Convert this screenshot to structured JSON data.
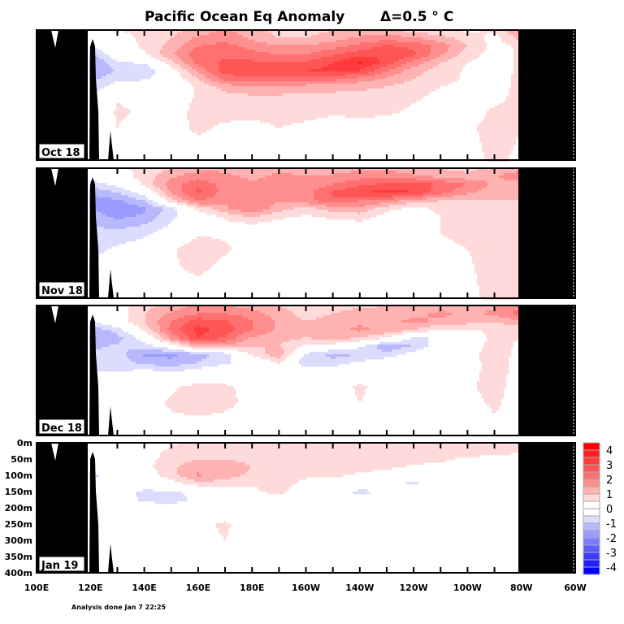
{
  "chart_data": {
    "type": "heatmap",
    "title": "Pacific Ocean Eq Anomaly",
    "contour_interval": "Δ=0.5 ° C",
    "footer": "Analysis done Jan 7 22:25",
    "x_tick_labels": [
      "100E",
      "120E",
      "140E",
      "160E",
      "180E",
      "160W",
      "140W",
      "120W",
      "100W",
      "80W",
      "60W"
    ],
    "y_tick_labels": [
      "0m",
      "50m",
      "100m",
      "150m",
      "200m",
      "250m",
      "300m",
      "350m",
      "400m"
    ],
    "xlim_deg_east": [
      100,
      300
    ],
    "ylim_depth_m": [
      0,
      400
    ],
    "land_color": "#000000",
    "colorbar": {
      "labels": [
        "4",
        "3",
        "2",
        "1",
        "0",
        "-1",
        "-2",
        "-3",
        "-4"
      ],
      "colors": [
        "#ff0000",
        "#ff2020",
        "#ff3c3c",
        "#ff5555",
        "#ff7070",
        "#ff8e8e",
        "#ffb2b2",
        "#ffdada",
        "#ffffff",
        "#ffffff",
        "#dcdcff",
        "#b8b8ff",
        "#9a9aff",
        "#7c7cff",
        "#5c5cff",
        "#3c3cff",
        "#2020ff",
        "#0000ff"
      ]
    },
    "grid_lon_deg_east": [
      120,
      130,
      140,
      150,
      160,
      170,
      180,
      190,
      200,
      210,
      220,
      230,
      240,
      250,
      260,
      270,
      280
    ],
    "grid_depth_m": [
      0,
      25,
      50,
      75,
      100,
      125,
      150,
      175,
      200,
      250,
      300,
      400
    ],
    "panels": [
      {
        "label": "Oct 18",
        "values": [
          [
            0,
            0.5,
            0.6,
            0.8,
            1.2,
            1.6,
            1.2,
            0.8,
            0.8,
            1.0,
            1.2,
            1.0,
            0.8,
            0.6,
            0.4,
            0.6,
            1.6
          ],
          [
            0,
            0.3,
            0.6,
            1.0,
            1.6,
            1.8,
            1.4,
            1.0,
            1.0,
            1.3,
            1.6,
            1.8,
            1.6,
            1.2,
            0.8,
            0.3,
            1.2
          ],
          [
            -0.5,
            0.2,
            0.6,
            1.2,
            2.0,
            2.2,
            1.8,
            1.6,
            1.6,
            1.8,
            2.2,
            2.6,
            2.4,
            1.8,
            1.0,
            0.3,
            0.6
          ],
          [
            -1.2,
            0,
            0.4,
            1.4,
            2.4,
            2.4,
            2.2,
            2.0,
            2.0,
            2.4,
            2.8,
            3.0,
            2.6,
            1.6,
            0.7,
            0.3,
            0.6
          ],
          [
            -1.6,
            -0.6,
            -0.4,
            0.8,
            2.2,
            2.6,
            2.6,
            2.6,
            2.6,
            3.0,
            3.6,
            2.8,
            1.8,
            1.0,
            0.5,
            0.3,
            0.6
          ],
          [
            -1.6,
            -0.9,
            -1.0,
            0.2,
            1.6,
            2.8,
            2.8,
            2.8,
            3.0,
            3.2,
            3.0,
            2.0,
            1.2,
            0.8,
            0.4,
            0.2,
            0.6
          ],
          [
            -1.2,
            -0.6,
            -0.6,
            0,
            1.0,
            2.2,
            2.4,
            2.4,
            2.4,
            2.2,
            1.8,
            1.4,
            1.0,
            0.7,
            0.4,
            0.2,
            0.7
          ],
          [
            -0.8,
            -0.2,
            0.1,
            -0.2,
            0.6,
            1.2,
            1.4,
            1.3,
            1.2,
            1.2,
            1.1,
            1.0,
            0.7,
            0.5,
            0.3,
            0.2,
            0.7
          ],
          [
            -0.6,
            0.4,
            0.3,
            0,
            0.6,
            0.9,
            1.0,
            1.0,
            0.9,
            0.9,
            0.9,
            0.8,
            0.6,
            0.4,
            0.2,
            0.3,
            0.7
          ],
          [
            -0.3,
            0.6,
            0.4,
            0.2,
            0.7,
            0.7,
            0.7,
            0.8,
            0.8,
            0.6,
            0.7,
            0.6,
            0.4,
            0.3,
            0.2,
            0.6,
            0.6
          ],
          [
            0,
            0.5,
            0.2,
            0.3,
            0.6,
            0.4,
            0.3,
            0.5,
            0.3,
            0.2,
            0.2,
            0.2,
            0.2,
            0.2,
            0.4,
            0.7,
            0.5
          ],
          [
            0,
            0.3,
            0,
            0.2,
            0.2,
            0.2,
            0.1,
            0.1,
            0.1,
            0.1,
            0.1,
            0.1,
            0.1,
            0.1,
            0.3,
            0.6,
            0.4
          ]
        ]
      },
      {
        "label": "Nov 18",
        "values": [
          [
            0,
            0.4,
            0.6,
            1.0,
            1.3,
            1.4,
            1.2,
            1.4,
            1.3,
            1.2,
            1.4,
            1.4,
            1.2,
            1.0,
            0.8,
            1.2,
            1.2
          ],
          [
            -0.3,
            0.2,
            0.7,
            1.4,
            1.8,
            1.6,
            1.4,
            1.6,
            1.5,
            1.6,
            1.8,
            1.8,
            1.6,
            1.4,
            1.2,
            1.4,
            2.0
          ],
          [
            -0.8,
            -0.3,
            0.6,
            1.8,
            2.4,
            1.8,
            1.6,
            1.6,
            1.6,
            2.0,
            2.4,
            2.6,
            2.8,
            2.4,
            2.0,
            1.4,
            1.2
          ],
          [
            -1.4,
            -1.0,
            -0.2,
            1.6,
            2.6,
            1.8,
            1.6,
            1.5,
            1.8,
            2.6,
            3.0,
            3.2,
            3.0,
            2.2,
            1.6,
            1.2,
            1.0
          ],
          [
            -1.8,
            -1.6,
            -1.0,
            0.8,
            2.0,
            1.6,
            1.6,
            1.6,
            1.8,
            2.4,
            2.0,
            1.8,
            1.2,
            1.0,
            1.0,
            1.0,
            1.0
          ],
          [
            -1.4,
            -2.0,
            -1.6,
            -0.8,
            0.6,
            1.4,
            2.0,
            1.2,
            0.8,
            1.2,
            1.4,
            0.6,
            0.3,
            0.6,
            0.8,
            1.0,
            0.8
          ],
          [
            -1.2,
            -1.6,
            -1.4,
            -0.6,
            0,
            0.6,
            1.0,
            0.6,
            0.4,
            0.6,
            0.7,
            0.3,
            0.2,
            0.5,
            0.7,
            1.0,
            0.8
          ],
          [
            -1.0,
            -1.2,
            -1.0,
            -0.4,
            0.2,
            0.3,
            0.4,
            0.2,
            0.1,
            0.2,
            0.3,
            0.2,
            0.2,
            0.5,
            0.6,
            0.9,
            0.7
          ],
          [
            -0.8,
            -0.8,
            -0.6,
            -0.2,
            0.4,
            0.4,
            0.2,
            0.1,
            0,
            0.2,
            0.2,
            0.2,
            0.3,
            0.5,
            0.6,
            0.9,
            0.7
          ],
          [
            -0.7,
            -0.4,
            -0.2,
            0.4,
            0.9,
            0.6,
            0.2,
            0,
            0.1,
            0.4,
            0.4,
            0.3,
            0.3,
            0.4,
            0.5,
            0.8,
            0.7
          ],
          [
            -0.6,
            0.2,
            0,
            0.4,
            0.7,
            0.3,
            0.1,
            0,
            0,
            0.2,
            0.2,
            0.2,
            0.2,
            0.3,
            0.4,
            0.8,
            0.6
          ],
          [
            -0.2,
            0.3,
            0,
            0.1,
            0.1,
            0,
            0,
            0,
            0,
            0,
            0,
            0,
            0,
            0.1,
            0.3,
            0.7,
            0.5
          ]
        ]
      },
      {
        "label": "Dec 18",
        "values": [
          [
            0.2,
            0.3,
            0.8,
            1.2,
            1.6,
            1.6,
            1.2,
            1.0,
            0.8,
            0.8,
            0.9,
            1.0,
            1.2,
            1.3,
            1.2,
            1.4,
            2.0
          ],
          [
            0,
            0.2,
            1.0,
            1.6,
            2.0,
            2.0,
            1.8,
            1.2,
            0.8,
            1.0,
            1.2,
            1.2,
            1.4,
            1.6,
            1.4,
            1.6,
            2.2
          ],
          [
            -0.6,
            0.2,
            1.0,
            2.0,
            2.8,
            2.6,
            2.0,
            1.4,
            1.0,
            1.2,
            1.4,
            1.4,
            1.6,
            1.4,
            1.2,
            1.0,
            1.4
          ],
          [
            -1.4,
            -0.8,
            0.6,
            2.2,
            3.2,
            2.8,
            2.0,
            1.4,
            1.2,
            1.4,
            1.6,
            1.4,
            1.0,
            0.4,
            0.4,
            0.6,
            0.6
          ],
          [
            -1.6,
            -1.2,
            -0.2,
            1.6,
            3.0,
            2.4,
            1.4,
            1.2,
            1.0,
            1.2,
            1.0,
            0.4,
            -0.6,
            -0.4,
            0.2,
            0.6,
            0.5
          ],
          [
            -1.2,
            -0.9,
            -0.8,
            0,
            1.4,
            1.4,
            1.0,
            1.0,
            0.4,
            0.2,
            -0.4,
            -1.4,
            -1.0,
            0,
            0.2,
            0.7,
            0.4
          ],
          [
            -0.8,
            -0.8,
            -1.6,
            -1.6,
            -1.2,
            -0.8,
            0.6,
            1.4,
            -0.6,
            -1.2,
            -1.0,
            -0.8,
            -0.2,
            0.2,
            0.3,
            0.8,
            0.3
          ],
          [
            -0.6,
            -0.6,
            -1.2,
            -1.4,
            -1.0,
            -0.6,
            -0.2,
            0.6,
            -1.0,
            -0.8,
            -0.4,
            -0.1,
            0,
            0.1,
            0.3,
            0.7,
            0.3
          ],
          [
            -0.5,
            -0.6,
            -0.4,
            -0.6,
            -0.3,
            -0.1,
            0,
            0,
            -0.2,
            -0.1,
            0,
            0,
            0,
            0.1,
            0.3,
            0.7,
            0.3
          ],
          [
            -0.4,
            0.2,
            0,
            0.4,
            0.7,
            0.6,
            0.3,
            0,
            0,
            0.2,
            0.6,
            0.2,
            0,
            0.1,
            0.4,
            0.7,
            0.2
          ],
          [
            0,
            0.4,
            0.2,
            0.6,
            0.7,
            0.6,
            0.4,
            0.1,
            0,
            0.2,
            0.5,
            0.2,
            0.3,
            0.1,
            0.3,
            0.6,
            0.2
          ],
          [
            0,
            0.1,
            0,
            0.2,
            0.2,
            0.2,
            0.1,
            0,
            0,
            0,
            0,
            0,
            0,
            0,
            0,
            0.3,
            0.1
          ]
        ]
      },
      {
        "label": "Jan 19",
        "values": [
          [
            0,
            0.1,
            0.2,
            0.4,
            0.7,
            0.8,
            0.8,
            0.7,
            0.6,
            0.5,
            0.7,
            0.8,
            0.8,
            0.8,
            0.8,
            0.8,
            0.7
          ],
          [
            0,
            0.1,
            0.3,
            0.6,
            0.8,
            0.9,
            0.8,
            0.7,
            0.7,
            0.6,
            0.7,
            0.8,
            0.8,
            0.8,
            0.8,
            0.7,
            0.6
          ],
          [
            0,
            0.1,
            0.3,
            0.7,
            1.0,
            1.0,
            0.9,
            0.8,
            0.8,
            0.8,
            0.8,
            0.8,
            0.7,
            0.6,
            0.4,
            0.3,
            0.2
          ],
          [
            -0.3,
            0,
            0.3,
            0.9,
            1.3,
            1.2,
            1.0,
            0.8,
            0.8,
            0.8,
            0.7,
            0.6,
            0.4,
            0.3,
            0.2,
            0.1,
            0
          ],
          [
            -0.6,
            -0.3,
            0.1,
            0.8,
            1.6,
            1.2,
            0.9,
            0.7,
            0.6,
            0.6,
            0.4,
            0.2,
            0,
            -0.3,
            0,
            0,
            0
          ],
          [
            -0.4,
            -0.2,
            0,
            0.2,
            0.8,
            0.8,
            0.6,
            0.8,
            0.3,
            0.2,
            0,
            -0.3,
            -0.6,
            -0.2,
            0,
            0,
            0
          ],
          [
            -0.2,
            -0.3,
            -0.6,
            -0.6,
            -0.3,
            0.2,
            0.3,
            0.8,
            -0.2,
            -0.4,
            -0.6,
            -0.5,
            -0.1,
            0,
            0,
            0,
            0
          ],
          [
            0,
            -0.2,
            -0.6,
            -0.7,
            -0.4,
            -0.1,
            0,
            0,
            -0.5,
            -0.2,
            -0.2,
            0,
            0,
            0,
            0,
            0,
            0
          ],
          [
            0,
            0,
            -0.2,
            -0.3,
            -0.1,
            0,
            0,
            0,
            -0.1,
            0,
            0,
            0,
            0,
            0,
            0,
            0,
            0
          ],
          [
            0,
            0,
            0,
            0,
            0.3,
            0.6,
            0.2,
            0,
            0,
            0,
            0,
            0,
            0,
            0,
            0,
            0,
            0
          ],
          [
            0,
            0,
            0,
            0,
            0.3,
            0.5,
            0,
            0,
            0,
            0,
            0,
            0,
            0,
            0,
            0,
            0,
            0
          ],
          [
            0,
            0,
            0,
            0,
            0,
            0,
            0,
            0,
            0,
            0,
            0,
            0,
            0,
            0,
            0,
            0,
            0
          ]
        ]
      }
    ]
  }
}
